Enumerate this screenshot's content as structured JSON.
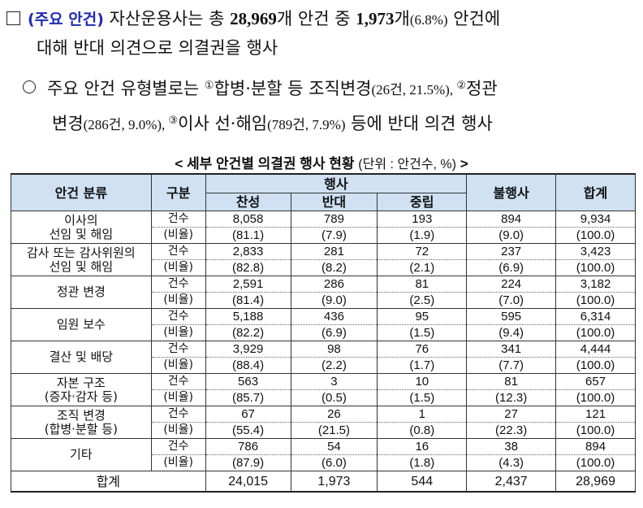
{
  "summary": {
    "prefix": "(주요 안건)",
    "t1": " 자산운용사는 총 ",
    "total_items": "28,969",
    "t2": "개 안건 중 ",
    "opposed": "1,973",
    "t3": "개",
    "opposed_pct": "(6.8%)",
    "t4": " 안건에",
    "line2": "대해 반대 의견으로 의결권을 행사"
  },
  "detail": {
    "t1": "주요 안건 유형별로는 ",
    "n1": "①",
    "a1": "합병·분할 등 조직변경",
    "a1_val": "(26건, 21.5%)",
    "sep1": ", ",
    "n2": "②",
    "a2": "정관",
    "a2b": "변경",
    "a2_val": "(286건, 9.0%)",
    "sep2": ", ",
    "n3": "③",
    "a3": "이사 선·해임",
    "a3_val": "(789건, 7.9%)",
    "t_end": " 등에 반대 의견 행사"
  },
  "table": {
    "title": "< 세부 안건별 의결권 행사 현황",
    "unit": "(단위 : 안건수, %)",
    "title_end": ">",
    "headers": {
      "category": "안건 분류",
      "type": "구분",
      "exercise": "행사",
      "approve": "찬성",
      "oppose": "반대",
      "neutral": "중립",
      "not_exercised": "불행사",
      "total": "합계"
    },
    "row_labels": {
      "count": "건수",
      "ratio": "(비율)"
    },
    "rows": [
      {
        "line1": "이사의",
        "line2": "선임 및 해임",
        "count": [
          "8,058",
          "789",
          "193",
          "894",
          "9,934"
        ],
        "ratio": [
          "(81.1)",
          "(7.9)",
          "(1.9)",
          "(9.0)",
          "(100.0)"
        ]
      },
      {
        "line1": "감사 또는 감사위원의",
        "line2": "선임 및 해임",
        "count": [
          "2,833",
          "281",
          "72",
          "237",
          "3,423"
        ],
        "ratio": [
          "(82.8)",
          "(8.2)",
          "(2.1)",
          "(6.9)",
          "(100.0)"
        ]
      },
      {
        "line1": "정관 변경",
        "line2": "",
        "count": [
          "2,591",
          "286",
          "81",
          "224",
          "3,182"
        ],
        "ratio": [
          "(81.4)",
          "(9.0)",
          "(2.5)",
          "(7.0)",
          "(100.0)"
        ]
      },
      {
        "line1": "임원 보수",
        "line2": "",
        "count": [
          "5,188",
          "436",
          "95",
          "595",
          "6,314"
        ],
        "ratio": [
          "(82.2)",
          "(6.9)",
          "(1.5)",
          "(9.4)",
          "(100.0)"
        ]
      },
      {
        "line1": "결산 및 배당",
        "line2": "",
        "count": [
          "3,929",
          "98",
          "76",
          "341",
          "4,444"
        ],
        "ratio": [
          "(88.4)",
          "(2.2)",
          "(1.7)",
          "(7.7)",
          "(100.0)"
        ]
      },
      {
        "line1": "자본 구조",
        "line2": "(증자·감자 등)",
        "count": [
          "563",
          "3",
          "10",
          "81",
          "657"
        ],
        "ratio": [
          "(85.7)",
          "(0.5)",
          "(1.5)",
          "(12.3)",
          "(100.0)"
        ]
      },
      {
        "line1": "조직 변경",
        "line2": "(합병·분할 등)",
        "count": [
          "67",
          "26",
          "1",
          "27",
          "121"
        ],
        "ratio": [
          "(55.4)",
          "(21.5)",
          "(0.8)",
          "(22.3)",
          "(100.0)"
        ]
      },
      {
        "line1": "기타",
        "line2": "",
        "count": [
          "786",
          "54",
          "16",
          "38",
          "894"
        ],
        "ratio": [
          "(87.9)",
          "(6.0)",
          "(1.8)",
          "(4.3)",
          "(100.0)"
        ]
      }
    ],
    "total_row": {
      "label": "합계",
      "values": [
        "24,015",
        "1,973",
        "544",
        "2,437",
        "28,969"
      ]
    }
  }
}
